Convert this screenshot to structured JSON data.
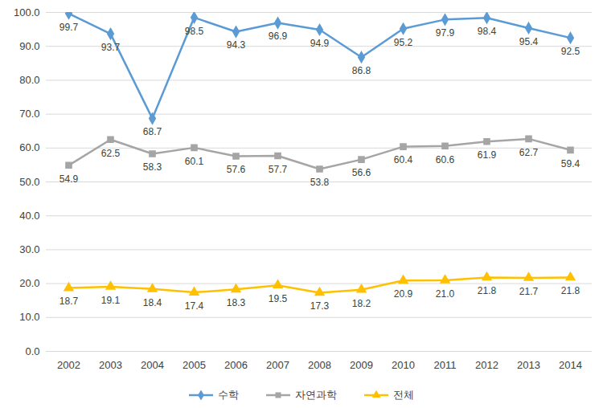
{
  "chart_data": {
    "type": "line",
    "categories": [
      "2002",
      "2003",
      "2004",
      "2005",
      "2006",
      "2007",
      "2008",
      "2009",
      "2010",
      "2011",
      "2012",
      "2013",
      "2014"
    ],
    "series": [
      {
        "name": "수학",
        "color": "#5b9bd5",
        "marker": "diamond",
        "values": [
          99.7,
          93.7,
          68.7,
          98.5,
          94.3,
          96.9,
          94.9,
          86.8,
          95.2,
          97.9,
          98.4,
          95.4,
          92.5
        ],
        "value_labels": [
          "99.7",
          "93.7",
          "68.7",
          "98.5",
          "94.3",
          "96.9",
          "94.9",
          "86.8",
          "95.2",
          "97.9",
          "98.4",
          "95.4",
          "92.5"
        ]
      },
      {
        "name": "자연과학",
        "color": "#a5a5a5",
        "marker": "square",
        "values": [
          54.9,
          62.5,
          58.3,
          60.1,
          57.6,
          57.7,
          53.8,
          56.6,
          60.4,
          60.6,
          61.9,
          62.7,
          59.4
        ],
        "value_labels": [
          "54.9",
          "62.5",
          "58.3",
          "60.1",
          "57.6",
          "57.7",
          "53.8",
          "56.6",
          "60.4",
          "60.6",
          "61.9",
          "62.7",
          "59.4"
        ]
      },
      {
        "name": "전체",
        "color": "#ffc000",
        "marker": "triangle",
        "values": [
          18.7,
          19.1,
          18.4,
          17.4,
          18.3,
          19.5,
          17.3,
          18.2,
          20.9,
          21.0,
          21.8,
          21.7,
          21.8
        ],
        "value_labels": [
          "18.7",
          "19.1",
          "18.4",
          "17.4",
          "18.3",
          "19.5",
          "17.3",
          "18.2",
          "20.9",
          "21.0",
          "21.8",
          "21.7",
          "21.8"
        ]
      }
    ],
    "ylim": [
      0,
      100
    ],
    "yticks": [
      {
        "value": 0,
        "label": "0.0"
      },
      {
        "value": 10,
        "label": "10.0"
      },
      {
        "value": 20,
        "label": "20.0"
      },
      {
        "value": 30,
        "label": "30.0"
      },
      {
        "value": 40,
        "label": "40.0"
      },
      {
        "value": 50,
        "label": "50.0"
      },
      {
        "value": 60,
        "label": "60.0"
      },
      {
        "value": 70,
        "label": "70.0"
      },
      {
        "value": 80,
        "label": "80.0"
      },
      {
        "value": 90,
        "label": "90.0"
      },
      {
        "value": 100,
        "label": "100.0"
      }
    ],
    "grid": true,
    "data_labels": true,
    "legend": "bottom"
  }
}
